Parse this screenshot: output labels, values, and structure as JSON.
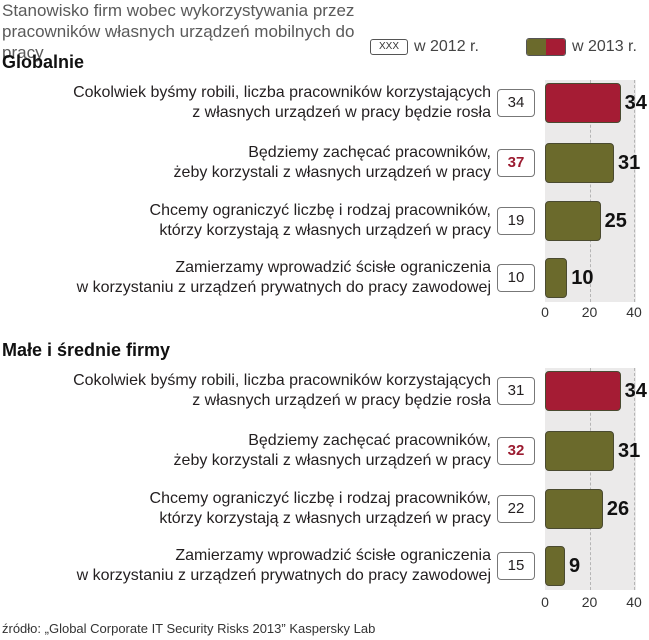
{
  "title": "Stanowisko firm wobec wykorzystywania przez pracowników własnych urządzeń mobilnych do pracy",
  "legend": {
    "prev_box_text": "XXX",
    "prev_label": "w 2012 r.",
    "curr_label": "w 2013 r."
  },
  "colors": {
    "highlight": "#a51c34",
    "bar": "#6b6a2c",
    "plot_bg": "#ebeaea"
  },
  "source": "źródło: „Global Corporate IT Security Risks 2013” Kaspersky Lab",
  "chart_data": [
    {
      "type": "bar",
      "orientation": "horizontal",
      "title": "Globalnie",
      "xlim": [
        0,
        40
      ],
      "ticks": [
        "0",
        "20",
        "40"
      ],
      "categories": [
        "Cokolwiek byśmy robili, liczba pracowników korzystających z własnych urządzeń w pracy będzie rosła",
        "Będziemy zachęcać pracowników, żeby korzystali z własnych urządzeń w pracy",
        "Chcemy ograniczyć liczbę i rodzaj pracowników, którzy korzystają z własnych urządzeń w pracy",
        "Zamierzamy wprowadzić ścisłe ograniczenia w korzystaniu z urządzeń prywatnych do pracy zawodowej"
      ],
      "label_lines": [
        [
          "Cokolwiek byśmy robili, liczba pracowników korzystających",
          "z własnych urządzeń w pracy będzie rosła"
        ],
        [
          "Będziemy zachęcać pracowników,",
          "żeby korzystali z własnych urządzeń w pracy"
        ],
        [
          "Chcemy ograniczyć liczbę i rodzaj pracowników,",
          "którzy korzystają z własnych urządzeń w pracy"
        ],
        [
          "Zamierzamy wprowadzić ścisłe ograniczenia",
          "w korzystaniu z urządzeń prywatnych do pracy zawodowej"
        ]
      ],
      "series": [
        {
          "name": "w 2012 r.",
          "values": [
            34,
            37,
            19,
            10
          ]
        },
        {
          "name": "w 2013 r.",
          "values": [
            34,
            31,
            25,
            10
          ]
        }
      ],
      "highlight_bar_index": 0,
      "highlight_prev_index": 1
    },
    {
      "type": "bar",
      "orientation": "horizontal",
      "title": "Małe i średnie firmy",
      "xlim": [
        0,
        40
      ],
      "ticks": [
        "0",
        "20",
        "40"
      ],
      "categories": [
        "Cokolwiek byśmy robili, liczba pracowników korzystających z własnych urządzeń w pracy będzie rosła",
        "Będziemy zachęcać pracowników, żeby korzystali z własnych urządzeń w pracy",
        "Chcemy ograniczyć liczbę i rodzaj pracowników, którzy korzystają z własnych urządzeń w pracy",
        "Zamierzamy wprowadzić ścisłe ograniczenia w korzystaniu z urządzeń prywatnych do pracy zawodowej"
      ],
      "label_lines": [
        [
          "Cokolwiek byśmy robili, liczba pracowników korzystających",
          "z własnych urządzeń w pracy będzie rosła"
        ],
        [
          "Będziemy zachęcać pracowników,",
          "żeby korzystali z własnych urządzeń w pracy"
        ],
        [
          "Chcemy ograniczyć liczbę i rodzaj pracowników,",
          "którzy korzystają z własnych urządzeń w pracy"
        ],
        [
          "Zamierzamy wprowadzić ścisłe ograniczenia",
          "w korzystaniu z urządzeń prywatnych do pracy zawodowej"
        ]
      ],
      "series": [
        {
          "name": "w 2012 r.",
          "values": [
            31,
            32,
            22,
            15
          ]
        },
        {
          "name": "w 2013 r.",
          "values": [
            34,
            31,
            26,
            9
          ]
        }
      ],
      "highlight_bar_index": 0,
      "highlight_prev_index": 1
    }
  ]
}
